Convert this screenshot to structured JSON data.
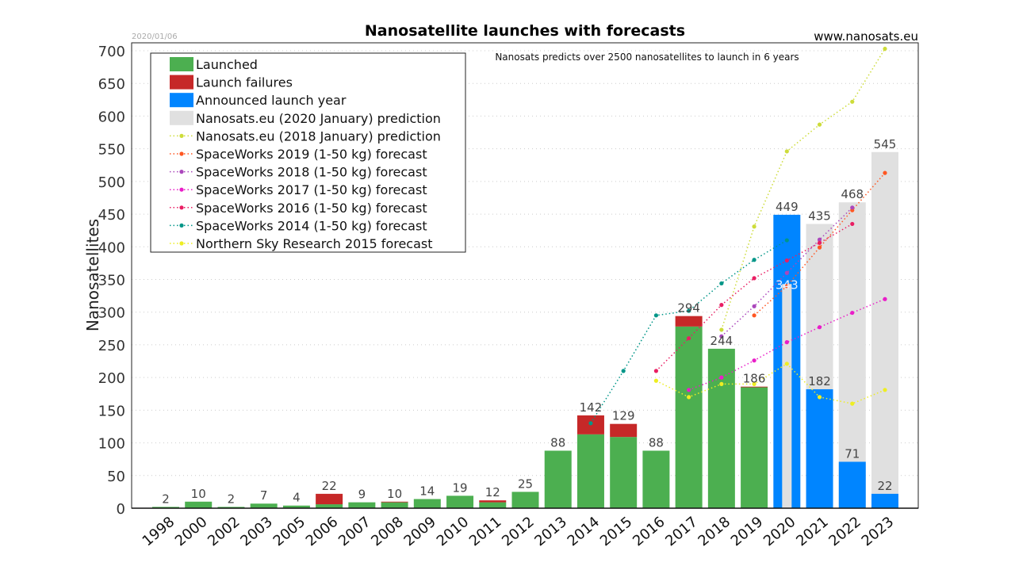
{
  "chart_data": {
    "type": "bar",
    "title": "Nanosatellite launches with forecasts",
    "date": "2020/01/06",
    "source": "www.nanosats.eu",
    "annotation": "Nanosats predicts over 2500 nanosatellites to launch in 6 years",
    "xlabel": "",
    "ylabel": "Nanosatellites",
    "ylim": [
      0,
      700
    ],
    "yticks": [
      0,
      50,
      100,
      150,
      200,
      250,
      300,
      350,
      400,
      450,
      500,
      550,
      600,
      650,
      700
    ],
    "grid": true,
    "legend_position": "top-left",
    "categories": [
      "1998",
      "2000",
      "2002",
      "2003",
      "2005",
      "2006",
      "2007",
      "2008",
      "2009",
      "2010",
      "2011",
      "2012",
      "2013",
      "2014",
      "2015",
      "2016",
      "2017",
      "2018",
      "2019",
      "2020",
      "2021",
      "2022",
      "2023"
    ],
    "bar_series": [
      {
        "name": "Launched",
        "color": "#4caf50",
        "values": [
          2,
          10,
          2,
          7,
          4,
          6,
          9,
          9,
          14,
          19,
          9,
          25,
          88,
          113,
          109,
          88,
          278,
          244,
          185,
          null,
          null,
          null,
          null
        ]
      },
      {
        "name": "Launch failures",
        "color": "#c62828",
        "values": [
          0,
          0,
          0,
          0,
          0,
          16,
          0,
          1,
          0,
          0,
          3,
          0,
          0,
          29,
          20,
          0,
          16,
          0,
          1,
          null,
          null,
          null,
          null
        ]
      },
      {
        "name": "Announced launch year",
        "color": "#0085ff",
        "values": [
          null,
          null,
          null,
          null,
          null,
          null,
          null,
          null,
          null,
          null,
          null,
          null,
          null,
          null,
          null,
          null,
          null,
          null,
          null,
          449,
          182,
          71,
          22
        ]
      },
      {
        "name": "Nanosats.eu (2020 January) prediction",
        "color": "#e0e0e0",
        "values": [
          null,
          null,
          null,
          null,
          null,
          null,
          null,
          null,
          null,
          null,
          null,
          null,
          null,
          null,
          null,
          null,
          null,
          null,
          null,
          343,
          435,
          468,
          545
        ]
      }
    ],
    "bar_labels": [
      2,
      10,
      2,
      7,
      4,
      22,
      9,
      10,
      14,
      19,
      12,
      25,
      88,
      142,
      129,
      88,
      294,
      244,
      186,
      null,
      null,
      null,
      null
    ],
    "line_series": [
      {
        "name": "Nanosats.eu (2018 January) prediction",
        "color": "#cddc39",
        "points": [
          [
            "2018",
            273
          ],
          [
            "2019",
            431
          ],
          [
            "2020",
            546
          ],
          [
            "2021",
            587
          ],
          [
            "2022",
            622
          ],
          [
            "2023",
            703
          ]
        ]
      },
      {
        "name": "SpaceWorks 2019 (1-50 kg) forecast",
        "color": "#ff5722",
        "points": [
          [
            "2019",
            295
          ],
          [
            "2020",
            340
          ],
          [
            "2021",
            399
          ],
          [
            "2022",
            456
          ],
          [
            "2023",
            513
          ]
        ]
      },
      {
        "name": "SpaceWorks 2018 (1-50 kg) forecast",
        "color": "#ab47bc",
        "points": [
          [
            "2018",
            263
          ],
          [
            "2019",
            309
          ],
          [
            "2020",
            360
          ],
          [
            "2021",
            411
          ],
          [
            "2022",
            460
          ]
        ]
      },
      {
        "name": "SpaceWorks 2017 (1-50 kg) forecast",
        "color": "#e91ec8",
        "points": [
          [
            "2017",
            181
          ],
          [
            "2018",
            200
          ],
          [
            "2019",
            226
          ],
          [
            "2020",
            254
          ],
          [
            "2021",
            277
          ],
          [
            "2022",
            299
          ],
          [
            "2023",
            320
          ]
        ]
      },
      {
        "name": "SpaceWorks 2016 (1-50 kg) forecast",
        "color": "#e91e63",
        "points": [
          [
            "2016",
            210
          ],
          [
            "2017",
            260
          ],
          [
            "2018",
            311
          ],
          [
            "2019",
            352
          ],
          [
            "2020",
            379
          ],
          [
            "2021",
            406
          ],
          [
            "2022",
            435
          ]
        ]
      },
      {
        "name": "SpaceWorks 2014 (1-50 kg) forecast",
        "color": "#009688",
        "points": [
          [
            "2014",
            130
          ],
          [
            "2015",
            210
          ],
          [
            "2016",
            295
          ],
          [
            "2017",
            302
          ],
          [
            "2018",
            344
          ],
          [
            "2019",
            380
          ],
          [
            "2020",
            410
          ]
        ]
      },
      {
        "name": "Northern Sky Research 2015 forecast",
        "color": "#eeee22",
        "points": [
          [
            "2016",
            195
          ],
          [
            "2017",
            170
          ],
          [
            "2018",
            190
          ],
          [
            "2019",
            190
          ],
          [
            "2020",
            221
          ],
          [
            "2021",
            170
          ],
          [
            "2022",
            160
          ],
          [
            "2023",
            181
          ]
        ]
      }
    ]
  }
}
